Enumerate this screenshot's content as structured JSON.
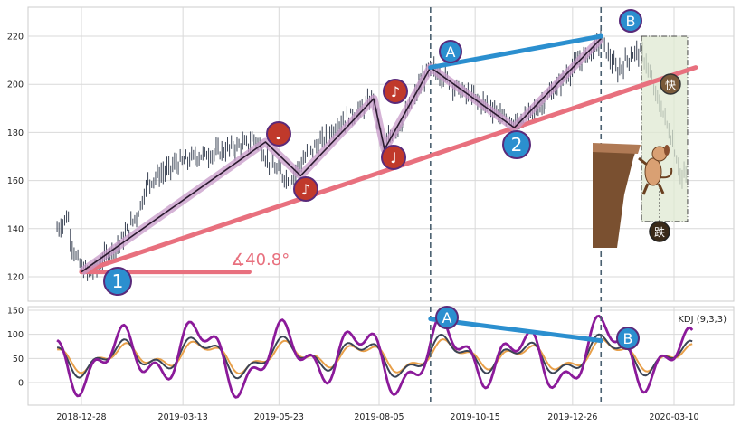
{
  "colors": {
    "panel_bg": "#ebebeb",
    "plot_bg": "#ffffff",
    "grid": "#d9d9d9",
    "candle": "#3b4455",
    "trendline": "#e8707e",
    "zigzag": "#2a1a2e",
    "zigzag_glow": "#c79ac8",
    "ab_line": "#2b8fcf",
    "marker_blue": "#2b8fcf",
    "marker_red": "#c0392b",
    "marker_border": "#5a2a7a",
    "vline": "#4a6070",
    "kdj_k": "#3b4455",
    "kdj_d": "#e8a04a",
    "kdj_j": "#8b1a9a",
    "box_fill": "#dfe8d2",
    "cliff": "#7a5030"
  },
  "chart_data": [
    {
      "type": "candlestick",
      "panel": "price",
      "ylim": [
        110,
        227
      ],
      "yticks": [
        120,
        140,
        160,
        180,
        200,
        220
      ],
      "x_range_days": [
        "2018-12-10",
        "2020-03-28"
      ],
      "price_path": [
        [
          "2018-12-10",
          140
        ],
        [
          "2018-12-14",
          142
        ],
        [
          "2018-12-18",
          146
        ],
        [
          "2018-12-20",
          136
        ],
        [
          "2018-12-24",
          128
        ],
        [
          "2018-12-28",
          124
        ],
        [
          "2019-01-03",
          121
        ],
        [
          "2019-01-10",
          125
        ],
        [
          "2019-01-17",
          130
        ],
        [
          "2019-01-24",
          133
        ],
        [
          "2019-02-01",
          140
        ],
        [
          "2019-02-08",
          147
        ],
        [
          "2019-02-15",
          159
        ],
        [
          "2019-02-22",
          162
        ],
        [
          "2019-03-01",
          164
        ],
        [
          "2019-03-08",
          167
        ],
        [
          "2019-03-15",
          168
        ],
        [
          "2019-03-22",
          170
        ],
        [
          "2019-04-01",
          171
        ],
        [
          "2019-04-10",
          172
        ],
        [
          "2019-04-20",
          174
        ],
        [
          "2019-04-30",
          175
        ],
        [
          "2019-05-05",
          178
        ],
        [
          "2019-05-13",
          170
        ],
        [
          "2019-05-20",
          165
        ],
        [
          "2019-05-31",
          160
        ],
        [
          "2019-06-07",
          166
        ],
        [
          "2019-06-15",
          172
        ],
        [
          "2019-06-25",
          177
        ],
        [
          "2019-07-05",
          183
        ],
        [
          "2019-07-15",
          187
        ],
        [
          "2019-07-25",
          190
        ],
        [
          "2019-08-01",
          195
        ],
        [
          "2019-08-08",
          173
        ],
        [
          "2019-08-15",
          180
        ],
        [
          "2019-08-23",
          185
        ],
        [
          "2019-08-30",
          193
        ],
        [
          "2019-09-06",
          202
        ],
        [
          "2019-09-12",
          207
        ],
        [
          "2019-09-20",
          204
        ],
        [
          "2019-09-28",
          200
        ],
        [
          "2019-10-08",
          196
        ],
        [
          "2019-10-18",
          193
        ],
        [
          "2019-10-28",
          190
        ],
        [
          "2019-11-06",
          186
        ],
        [
          "2019-11-12",
          183
        ],
        [
          "2019-11-20",
          186
        ],
        [
          "2019-11-30",
          190
        ],
        [
          "2019-12-10",
          196
        ],
        [
          "2019-12-20",
          203
        ],
        [
          "2019-12-30",
          209
        ],
        [
          "2020-01-10",
          214
        ],
        [
          "2020-01-16",
          219
        ],
        [
          "2020-01-20",
          214
        ],
        [
          "2020-01-28",
          205
        ],
        [
          "2020-02-05",
          211
        ],
        [
          "2020-02-12",
          214
        ],
        [
          "2020-02-18",
          210
        ],
        [
          "2020-02-24",
          198
        ],
        [
          "2020-03-02",
          188
        ],
        [
          "2020-03-09",
          176
        ],
        [
          "2020-03-16",
          160
        ],
        [
          "2020-03-20",
          165
        ]
      ],
      "trendline": {
        "from": [
          "2018-12-28",
          122
        ],
        "to": [
          "2020-03-26",
          207
        ]
      },
      "angle_base": {
        "from": [
          "2018-12-28",
          122
        ],
        "to": [
          "2019-05-01",
          122
        ]
      },
      "zigzag": [
        [
          "2018-12-28",
          122
        ],
        [
          "2019-05-13",
          176
        ],
        [
          "2019-06-08",
          162
        ],
        [
          "2019-08-01",
          194
        ],
        [
          "2019-08-09",
          173
        ],
        [
          "2019-09-12",
          207
        ],
        [
          "2019-11-13",
          182
        ],
        [
          "2020-01-16",
          219
        ]
      ],
      "ab_line": {
        "from": [
          "2019-09-12",
          207
        ],
        "to": [
          "2020-01-16",
          220
        ]
      },
      "vlines": [
        "2019-09-12",
        "2020-01-16"
      ],
      "shaded_box": {
        "from": [
          "2020-02-15",
          143
        ],
        "to": [
          "2020-03-20",
          220
        ]
      }
    },
    {
      "type": "line",
      "panel": "kdj",
      "ylim": [
        -45,
        155
      ],
      "yticks": [
        0,
        50,
        100,
        150
      ],
      "xticks": [
        "2018-12-28",
        "2019-03-13",
        "2019-05-23",
        "2019-08-05",
        "2019-10-15",
        "2019-12-26",
        "2020-03-10"
      ],
      "series": [
        {
          "role": "K",
          "period": 9.5,
          "amp": 28,
          "center": 55
        },
        {
          "role": "D",
          "period": 9.5,
          "amp": 22,
          "center": 55
        },
        {
          "role": "J",
          "period": 9.5,
          "amp": 52,
          "center": 55
        }
      ],
      "ab_line": {
        "from": [
          "2019-09-12",
          132
        ],
        "to": [
          "2020-01-16",
          87
        ]
      },
      "vlines": [
        "2019-09-12",
        "2020-01-16"
      ]
    }
  ],
  "labels": {
    "angle": "∡40.8°",
    "kdj": "KDJ (9,3,3)",
    "point1": "1",
    "point2": "2",
    "pointA": "A",
    "pointB": "B",
    "note": "♪",
    "note2": "♩",
    "sell": "快",
    "stumble": "跌"
  },
  "price_yticks": [
    "120",
    "140",
    "160",
    "180",
    "200",
    "220"
  ],
  "kdj_yticks": [
    "0",
    "50",
    "100",
    "150"
  ],
  "xtick_labels": [
    "2018-12-28",
    "2019-03-13",
    "2019-05-23",
    "2019-08-05",
    "2019-10-15",
    "2019-12-26",
    "2020-03-10"
  ]
}
